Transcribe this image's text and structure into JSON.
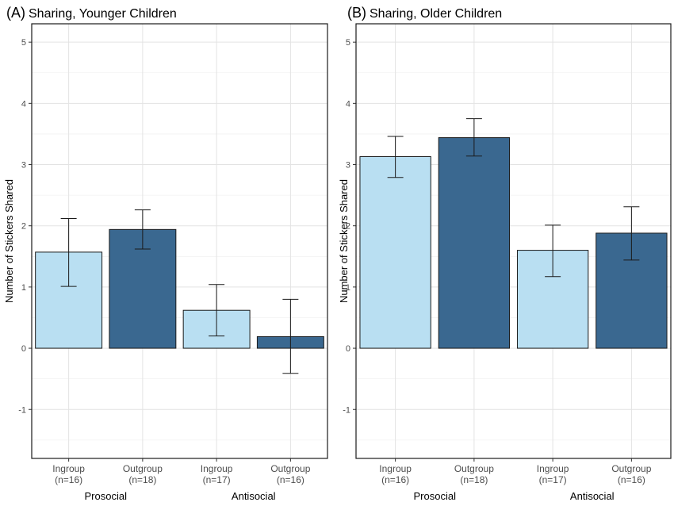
{
  "chart_data": [
    {
      "type": "bar",
      "panel": "(A)",
      "title": "Sharing, Younger Children",
      "ylabel": "Number of Stickers Shared",
      "xlabel": "",
      "ylim": [
        -1.8,
        5.3
      ],
      "yticks": [
        -1,
        0,
        1,
        2,
        3,
        4,
        5
      ],
      "grid": true,
      "categories": [
        "Ingroup",
        "Outgroup",
        "Ingroup",
        "Outgroup"
      ],
      "category_counts": [
        "(n=16)",
        "(n=18)",
        "(n=17)",
        "(n=16)"
      ],
      "groups": [
        "Prosocial",
        "Antisocial"
      ],
      "values": [
        1.57,
        1.94,
        0.62,
        0.19
      ],
      "error_low": [
        1.01,
        1.62,
        0.2,
        -0.41
      ],
      "error_high": [
        2.12,
        2.26,
        1.04,
        0.8
      ],
      "bar_colors": [
        "#b9dff2",
        "#3a6890",
        "#b9dff2",
        "#3a6890"
      ]
    },
    {
      "type": "bar",
      "panel": "(B)",
      "title": "Sharing, Older Children",
      "ylabel": "Number of Stickers Shared",
      "xlabel": "",
      "ylim": [
        -1.8,
        5.3
      ],
      "yticks": [
        -1,
        0,
        1,
        2,
        3,
        4,
        5
      ],
      "grid": true,
      "categories": [
        "Ingroup",
        "Outgroup",
        "Ingroup",
        "Outgroup"
      ],
      "category_counts": [
        "(n=16)",
        "(n=18)",
        "(n=17)",
        "(n=16)"
      ],
      "groups": [
        "Prosocial",
        "Antisocial"
      ],
      "values": [
        3.13,
        3.44,
        1.6,
        1.88
      ],
      "error_low": [
        2.79,
        3.14,
        1.17,
        1.44
      ],
      "error_high": [
        3.46,
        3.75,
        2.01,
        2.31
      ],
      "bar_colors": [
        "#b9dff2",
        "#3a6890",
        "#b9dff2",
        "#3a6890"
      ]
    }
  ]
}
